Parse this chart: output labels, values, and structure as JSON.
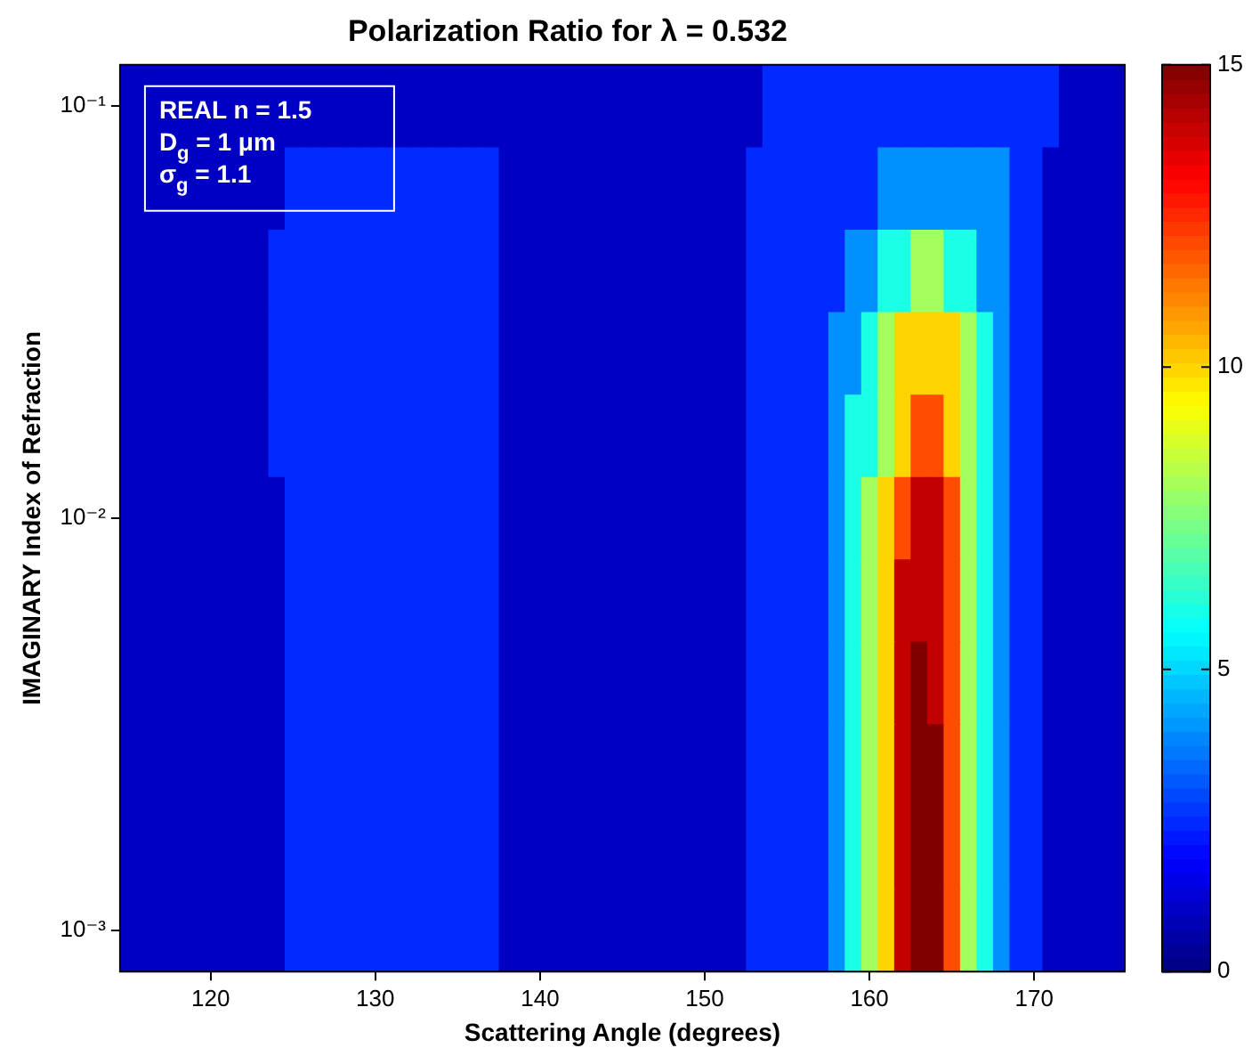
{
  "chart_data": {
    "type": "heatmap",
    "title": "Polarization Ratio for λ = 0.532",
    "xlabel": "Scattering Angle (degrees)",
    "ylabel": "IMAGINARY Index of Refraction",
    "annotations": [
      "REAL n = 1.5",
      "D$_{g}$ = 1 μm",
      "σ$_{g}$ = 1.1"
    ],
    "categories": [
      null,
      null,
      null,
      null,
      null,
      "120",
      null,
      null,
      null,
      null,
      null,
      null,
      null,
      null,
      null,
      "130",
      null,
      null,
      null,
      null,
      null,
      null,
      null,
      null,
      null,
      "140",
      null,
      null,
      null,
      null,
      null,
      null,
      null,
      null,
      null,
      "150",
      null,
      null,
      null,
      null,
      null,
      null,
      null,
      null,
      null,
      "160",
      null,
      null,
      null,
      null,
      null,
      null,
      null,
      null,
      null,
      "170",
      null,
      null,
      null,
      null,
      null
    ],
    "y_categories": [
      "10⁻¹",
      null,
      null,
      null,
      null,
      "10⁻²",
      null,
      null,
      null,
      null,
      "10⁻³"
    ],
    "cells": [
      [
        1,
        1,
        1,
        1,
        1,
        1,
        1,
        1,
        1,
        1,
        1,
        1,
        1,
        1,
        1,
        1,
        1,
        1,
        1,
        1,
        1,
        1,
        1,
        1,
        1,
        1,
        1,
        1,
        1,
        1,
        1,
        1,
        1,
        1,
        1,
        1,
        1,
        1,
        1,
        2.5,
        2.5,
        2.5,
        2.5,
        2.5,
        2.5,
        2.5,
        2.5,
        2.5,
        2.5,
        2.5,
        2.5,
        2.5,
        2.5,
        2.5,
        2.5,
        2.5,
        2.5,
        1,
        1,
        1,
        1
      ],
      [
        1,
        1,
        1,
        1,
        1,
        1,
        1,
        1,
        1,
        1,
        2.5,
        2.5,
        2.5,
        2.5,
        2.5,
        2.5,
        2.5,
        2.5,
        2.5,
        2.5,
        2.5,
        2.5,
        2.5,
        1,
        1,
        1,
        1,
        1,
        1,
        1,
        1,
        1,
        1,
        1,
        1,
        1,
        1,
        1,
        2.5,
        2.5,
        2.5,
        2.5,
        2.5,
        2.5,
        2.5,
        2.5,
        4,
        4,
        4,
        4,
        4,
        4,
        4,
        4,
        2.5,
        2.5,
        1,
        1,
        1,
        1,
        1
      ],
      [
        1,
        1,
        1,
        1,
        1,
        1,
        1,
        1,
        1,
        2.5,
        2.5,
        2.5,
        2.5,
        2.5,
        2.5,
        2.5,
        2.5,
        2.5,
        2.5,
        2.5,
        2.5,
        2.5,
        2.5,
        1,
        1,
        1,
        1,
        1,
        1,
        1,
        1,
        1,
        1,
        1,
        1,
        1,
        1,
        1,
        2.5,
        2.5,
        2.5,
        2.5,
        2.5,
        2.5,
        4,
        4,
        6,
        6,
        8,
        8,
        6,
        6,
        4,
        4,
        2.5,
        2.5,
        1,
        1,
        1,
        1,
        1
      ],
      [
        1,
        1,
        1,
        1,
        1,
        1,
        1,
        1,
        1,
        2.5,
        2.5,
        2.5,
        2.5,
        2.5,
        2.5,
        2.5,
        2.5,
        2.5,
        2.5,
        2.5,
        2.5,
        2.5,
        2.5,
        1,
        1,
        1,
        1,
        1,
        1,
        1,
        1,
        1,
        1,
        1,
        1,
        1,
        1,
        1,
        2.5,
        2.5,
        2.5,
        2.5,
        2.5,
        4,
        4,
        6,
        8,
        10,
        10,
        10,
        10,
        8,
        6,
        4,
        2.5,
        2.5,
        1,
        1,
        1,
        1,
        1
      ],
      [
        1,
        1,
        1,
        1,
        1,
        1,
        1,
        1,
        1,
        2.5,
        2.5,
        2.5,
        2.5,
        2.5,
        2.5,
        2.5,
        2.5,
        2.5,
        2.5,
        2.5,
        2.5,
        2.5,
        2.5,
        1,
        1,
        1,
        1,
        1,
        1,
        1,
        1,
        1,
        1,
        1,
        1,
        1,
        1,
        1,
        2.5,
        2.5,
        2.5,
        2.5,
        2.5,
        4,
        6,
        6,
        8,
        10,
        12,
        12,
        10,
        8,
        6,
        4,
        2.5,
        2.5,
        1,
        1,
        1,
        1,
        1
      ],
      [
        1,
        1,
        1,
        1,
        1,
        1,
        1,
        1,
        1,
        1,
        2.5,
        2.5,
        2.5,
        2.5,
        2.5,
        2.5,
        2.5,
        2.5,
        2.5,
        2.5,
        2.5,
        2.5,
        2.5,
        1,
        1,
        1,
        1,
        1,
        1,
        1,
        1,
        1,
        1,
        1,
        1,
        1,
        1,
        1,
        2.5,
        2.5,
        2.5,
        2.5,
        2.5,
        4,
        6,
        8,
        10,
        12,
        14,
        14,
        12,
        8,
        6,
        4,
        2.5,
        2.5,
        1,
        1,
        1,
        1,
        1
      ],
      [
        1,
        1,
        1,
        1,
        1,
        1,
        1,
        1,
        1,
        1,
        2.5,
        2.5,
        2.5,
        2.5,
        2.5,
        2.5,
        2.5,
        2.5,
        2.5,
        2.5,
        2.5,
        2.5,
        2.5,
        1,
        1,
        1,
        1,
        1,
        1,
        1,
        1,
        1,
        1,
        1,
        1,
        1,
        1,
        1,
        2.5,
        2.5,
        2.5,
        2.5,
        2.5,
        4,
        6,
        8,
        10,
        14,
        14,
        14,
        12,
        8,
        6,
        4,
        2.5,
        2.5,
        1,
        1,
        1,
        1,
        1
      ],
      [
        1,
        1,
        1,
        1,
        1,
        1,
        1,
        1,
        1,
        1,
        2.5,
        2.5,
        2.5,
        2.5,
        2.5,
        2.5,
        2.5,
        2.5,
        2.5,
        2.5,
        2.5,
        2.5,
        2.5,
        1,
        1,
        1,
        1,
        1,
        1,
        1,
        1,
        1,
        1,
        1,
        1,
        1,
        1,
        1,
        2.5,
        2.5,
        2.5,
        2.5,
        2.5,
        4,
        6,
        8,
        10,
        14,
        15,
        14,
        12,
        8,
        6,
        4,
        2.5,
        2.5,
        1,
        1,
        1,
        1,
        1
      ],
      [
        1,
        1,
        1,
        1,
        1,
        1,
        1,
        1,
        1,
        1,
        2.5,
        2.5,
        2.5,
        2.5,
        2.5,
        2.5,
        2.5,
        2.5,
        2.5,
        2.5,
        2.5,
        2.5,
        2.5,
        1,
        1,
        1,
        1,
        1,
        1,
        1,
        1,
        1,
        1,
        1,
        1,
        1,
        1,
        1,
        2.5,
        2.5,
        2.5,
        2.5,
        2.5,
        4,
        6,
        8,
        10,
        14,
        15,
        15,
        12,
        8,
        6,
        4,
        2.5,
        2.5,
        1,
        1,
        1,
        1,
        1
      ],
      [
        1,
        1,
        1,
        1,
        1,
        1,
        1,
        1,
        1,
        1,
        2.5,
        2.5,
        2.5,
        2.5,
        2.5,
        2.5,
        2.5,
        2.5,
        2.5,
        2.5,
        2.5,
        2.5,
        2.5,
        1,
        1,
        1,
        1,
        1,
        1,
        1,
        1,
        1,
        1,
        1,
        1,
        1,
        1,
        1,
        2.5,
        2.5,
        2.5,
        2.5,
        2.5,
        4,
        6,
        8,
        10,
        14,
        15,
        15,
        12,
        8,
        6,
        4,
        2.5,
        2.5,
        1,
        1,
        1,
        1,
        1
      ],
      [
        1,
        1,
        1,
        1,
        1,
        1,
        1,
        1,
        1,
        1,
        2.5,
        2.5,
        2.5,
        2.5,
        2.5,
        2.5,
        2.5,
        2.5,
        2.5,
        2.5,
        2.5,
        2.5,
        2.5,
        1,
        1,
        1,
        1,
        1,
        1,
        1,
        1,
        1,
        1,
        1,
        1,
        1,
        1,
        1,
        2.5,
        2.5,
        2.5,
        2.5,
        2.5,
        4,
        6,
        8,
        10,
        14,
        15,
        15,
        12,
        8,
        6,
        4,
        2.5,
        2.5,
        1,
        1,
        1,
        1,
        1
      ]
    ],
    "clim": [
      0,
      15
    ],
    "cticks": [
      0,
      5,
      10,
      15
    ]
  }
}
